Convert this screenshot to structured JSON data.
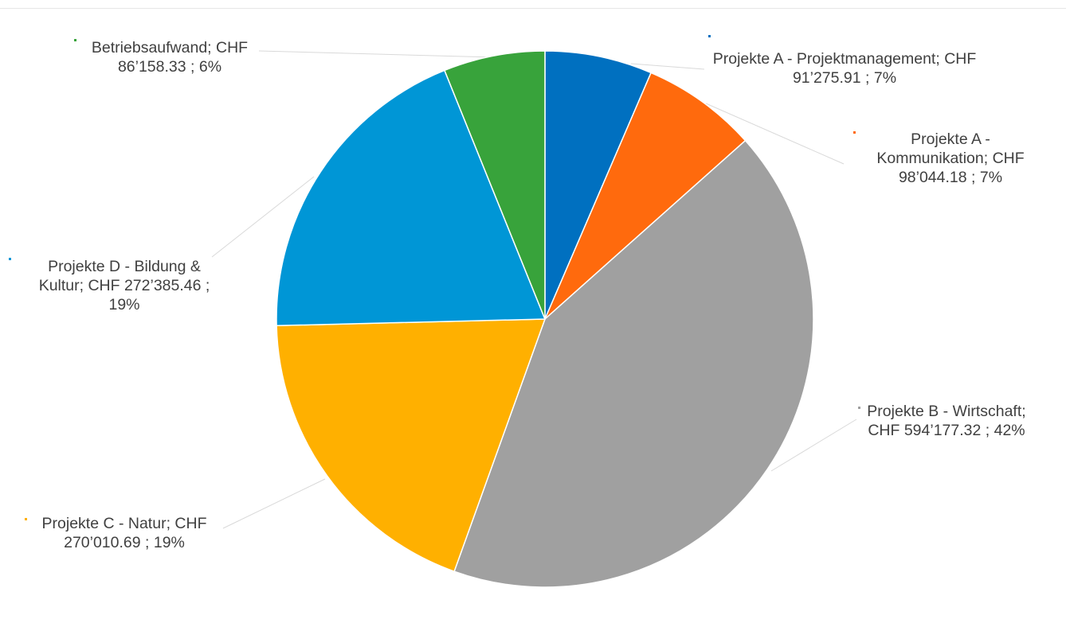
{
  "chart_data": {
    "type": "pie",
    "title": "",
    "slices": [
      {
        "name": "Projekte A - Projektmanagement",
        "value": 91275.91,
        "value_label": "CHF 91’275.91",
        "percent_label": "7%",
        "color": "#0070c0"
      },
      {
        "name": "Projekte A - Kommunikation",
        "value": 98044.18,
        "value_label": "CHF 98’044.18",
        "percent_label": "7%",
        "color": "#ff6a0d"
      },
      {
        "name": "Projekte B - Wirtschaft",
        "value": 594177.32,
        "value_label": "CHF 594’177.32",
        "percent_label": "42%",
        "color": "#a0a0a0"
      },
      {
        "name": "Projekte C - Natur",
        "value": 270010.69,
        "value_label": "CHF 270’010.69",
        "percent_label": "19%",
        "color": "#ffb000"
      },
      {
        "name": "Projekte D - Bildung & Kultur",
        "value": 272385.46,
        "value_label": "CHF 272’385.46",
        "percent_label": "19%",
        "color": "#0096d6"
      },
      {
        "name": "Betriebsaufwand",
        "value": 86158.33,
        "value_label": "CHF 86’158.33",
        "percent_label": "6%",
        "color": "#38a33b"
      }
    ],
    "data_labels": [
      [
        "Projekte A - Projektmanagement;  CHF",
        "91’275.91 ; 7%"
      ],
      [
        "Projekte A -",
        "Kommunikation;  CHF",
        "98’044.18 ; 7%"
      ],
      [
        "Projekte B - Wirtschaft;",
        "CHF 594’177.32 ; 42%"
      ],
      [
        "Projekte C - Natur;  CHF",
        "270’010.69 ; 19%"
      ],
      [
        "Projekte D - Bildung &",
        "Kultur;  CHF 272’385.46 ;",
        "19%"
      ],
      [
        "Betriebsaufwand;  CHF",
        "86’158.33 ; 6%"
      ]
    ],
    "legend": "none",
    "leader_line_color": "#d9d9d9"
  }
}
